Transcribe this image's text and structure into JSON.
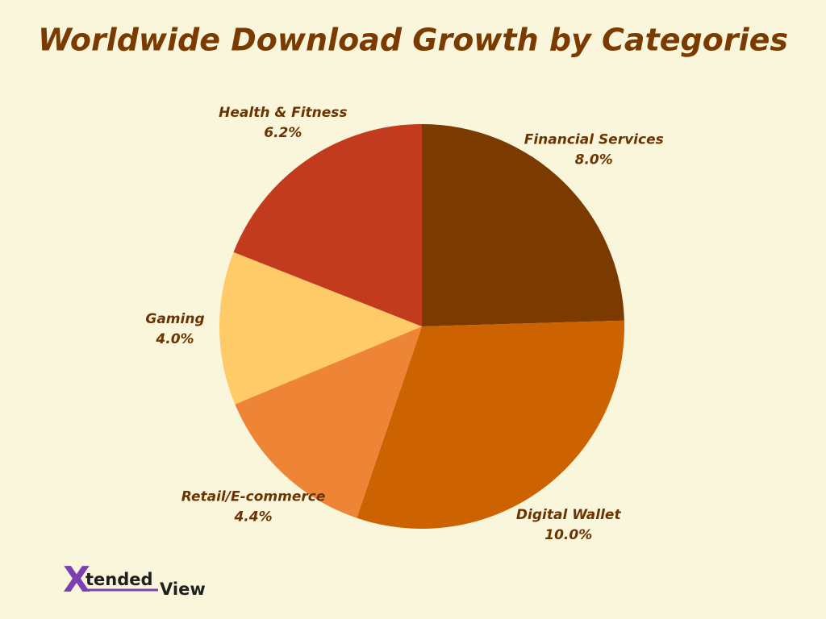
{
  "chart_data": {
    "type": "pie",
    "title": "Worldwide Download Growth by Categories",
    "categories": [
      "Financial Services",
      "Digital Wallet",
      "Retail/E-commerce",
      "Gaming",
      "Health & Fitness"
    ],
    "values": [
      8.0,
      10.0,
      4.4,
      4.0,
      6.2
    ],
    "value_labels": [
      "8.0%",
      "10.0%",
      "4.4%",
      "4.0%",
      "6.2%"
    ],
    "colors": [
      "#7a3a00",
      "#cc6200",
      "#ee8536",
      "#fecb68",
      "#c23b1e"
    ]
  },
  "logo": {
    "mark": "X",
    "text": "tended",
    "suffix": "View"
  }
}
